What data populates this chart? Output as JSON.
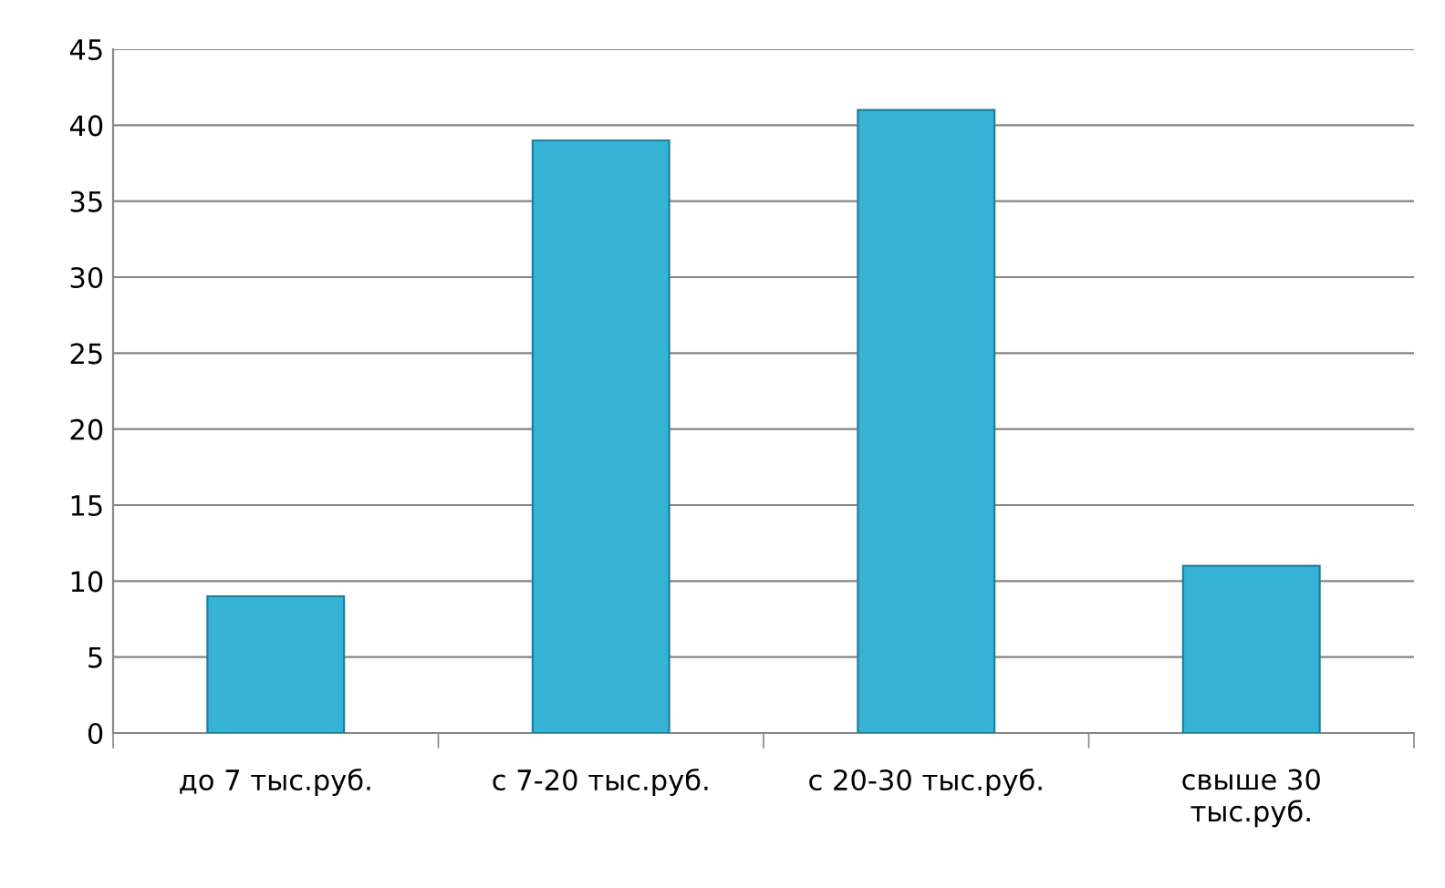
{
  "chart_data": {
    "type": "bar",
    "categories": [
      "до 7 тыс.руб.",
      "с 7-20 тыс.руб.",
      "с 20-30 тыс.руб.",
      "свыше 30\nтыс.руб."
    ],
    "values": [
      9,
      39,
      41,
      11
    ],
    "color": "#35b2d6",
    "ylim": [
      0,
      45
    ],
    "yticks": [
      0,
      5,
      10,
      15,
      20,
      25,
      30,
      35,
      40,
      45
    ],
    "grid": "y",
    "legend": false
  }
}
